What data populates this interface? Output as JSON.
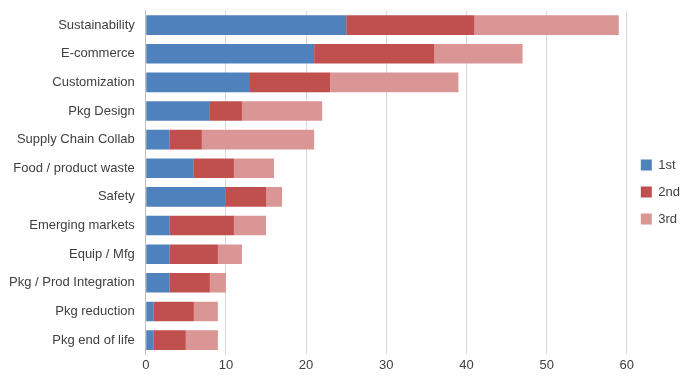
{
  "chart_data": {
    "type": "bar",
    "orientation": "horizontal",
    "stacked": true,
    "grid": true,
    "legend": "right",
    "categories": [
      "Sustainability",
      "E-commerce",
      "Customization",
      "Pkg Design",
      "Supply Chain Collab",
      "Food / product waste",
      "Safety",
      "Emerging markets",
      "Equip / Mfg",
      "Pkg / Prod Integration",
      "Pkg reduction",
      "Pkg end of life"
    ],
    "series": [
      {
        "name": "1st",
        "color": "#4f81bd",
        "values": [
          25,
          21,
          13,
          8,
          3,
          6,
          10,
          3,
          3,
          3,
          1,
          1
        ]
      },
      {
        "name": "2nd",
        "color": "#c0504d",
        "values": [
          16,
          15,
          10,
          4,
          4,
          5,
          5,
          8,
          6,
          5,
          5,
          4
        ]
      },
      {
        "name": "3rd",
        "color": "#d99694",
        "values": [
          18,
          11,
          16,
          10,
          14,
          5,
          2,
          4,
          3,
          2,
          3,
          4
        ]
      }
    ],
    "xlim": [
      0,
      60
    ],
    "xticks": [
      0,
      10,
      20,
      30,
      40,
      50,
      60
    ]
  }
}
